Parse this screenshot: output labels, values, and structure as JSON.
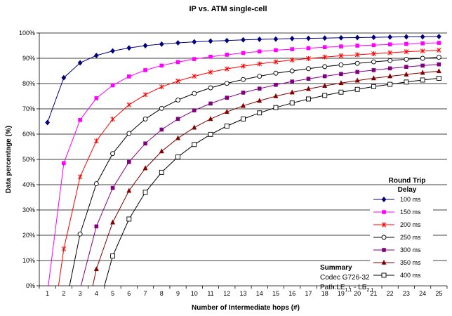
{
  "chart_data": {
    "type": "line",
    "title": "IP vs. ATM single-cell",
    "xlabel": "Number of Intermediate hops (#)",
    "ylabel": "Data percentage (%)",
    "x": [
      1,
      2,
      3,
      4,
      5,
      6,
      7,
      8,
      9,
      10,
      11,
      12,
      13,
      14,
      15,
      16,
      17,
      18,
      19,
      20,
      21,
      22,
      23,
      24,
      25
    ],
    "xlim": [
      1,
      25
    ],
    "ylim": [
      0,
      100
    ],
    "yticks": [
      "0%",
      "10%",
      "20%",
      "30%",
      "40%",
      "50%",
      "60%",
      "70%",
      "80%",
      "90%",
      "100%"
    ],
    "grid": true,
    "legend": {
      "title_line1": "Round Trip",
      "title_line2": "Delay",
      "placement": "right"
    },
    "series": [
      {
        "name": "100 ms",
        "color": "#000080",
        "marker": "diamond",
        "values": [
          64.6,
          82.3,
          88.2,
          91.1,
          92.9,
          94.1,
          95.0,
          95.6,
          96.1,
          96.5,
          96.8,
          97.0,
          97.3,
          97.5,
          97.6,
          97.8,
          97.9,
          98.0,
          98.1,
          98.2,
          98.3,
          98.4,
          98.5,
          98.5,
          98.6
        ]
      },
      {
        "name": "150 ms",
        "color": "#ff00ff",
        "marker": "square-filled",
        "values": [
          null,
          48.5,
          65.6,
          74.2,
          79.3,
          82.8,
          85.3,
          87.1,
          88.5,
          89.7,
          90.6,
          91.4,
          92.1,
          92.7,
          93.2,
          93.6,
          94.0,
          94.4,
          94.7,
          95.0,
          95.2,
          95.5,
          95.7,
          95.9,
          96.1
        ]
      },
      {
        "name": "200 ms",
        "color": "#ff0000",
        "marker": "asterisk",
        "values": [
          null,
          14.6,
          43.1,
          57.3,
          65.9,
          71.6,
          75.6,
          78.7,
          81.0,
          82.9,
          84.5,
          85.8,
          86.9,
          87.8,
          88.6,
          89.3,
          89.9,
          90.5,
          91.0,
          91.4,
          91.8,
          92.2,
          92.6,
          92.9,
          93.2
        ]
      },
      {
        "name": "250 ms",
        "color": "#000000",
        "marker": "circle-open",
        "values": [
          null,
          null,
          20.5,
          40.4,
          52.3,
          60.3,
          66.0,
          70.2,
          73.5,
          76.1,
          78.3,
          80.1,
          81.6,
          82.9,
          84.1,
          85.0,
          85.9,
          86.7,
          87.4,
          88.0,
          88.6,
          89.1,
          89.6,
          90.0,
          90.4
        ]
      },
      {
        "name": "300 ms",
        "color": "#800080",
        "marker": "square-filled",
        "values": [
          null,
          null,
          null,
          23.5,
          38.7,
          49.0,
          56.3,
          61.8,
          66.0,
          69.4,
          72.1,
          74.4,
          76.4,
          78.0,
          79.5,
          80.8,
          81.9,
          82.9,
          83.8,
          84.6,
          85.3,
          86.0,
          86.6,
          87.1,
          87.6
        ]
      },
      {
        "name": "350 ms",
        "color": "#800000",
        "marker": "triangle-filled",
        "values": [
          null,
          null,
          null,
          6.6,
          25.1,
          37.6,
          46.5,
          53.2,
          58.4,
          62.6,
          66.0,
          68.8,
          71.2,
          73.2,
          75.0,
          76.5,
          77.9,
          79.1,
          80.2,
          81.2,
          82.1,
          82.9,
          83.6,
          84.3,
          84.9
        ]
      },
      {
        "name": "400 ms",
        "color": "#000000",
        "marker": "square-open",
        "values": [
          null,
          null,
          null,
          null,
          11.8,
          26.4,
          37.0,
          44.9,
          51.0,
          55.9,
          59.9,
          63.2,
          66.0,
          68.4,
          70.5,
          72.3,
          73.9,
          75.3,
          76.6,
          77.7,
          78.8,
          79.7,
          80.6,
          81.4,
          82.1
        ]
      }
    ],
    "annotation": {
      "title": "Summary",
      "line1": "Codec G726-32",
      "line2_prefix": "Path:LE",
      "sub1": "1,1",
      "line2_mid": " - LE",
      "sub2": "2,1"
    }
  }
}
